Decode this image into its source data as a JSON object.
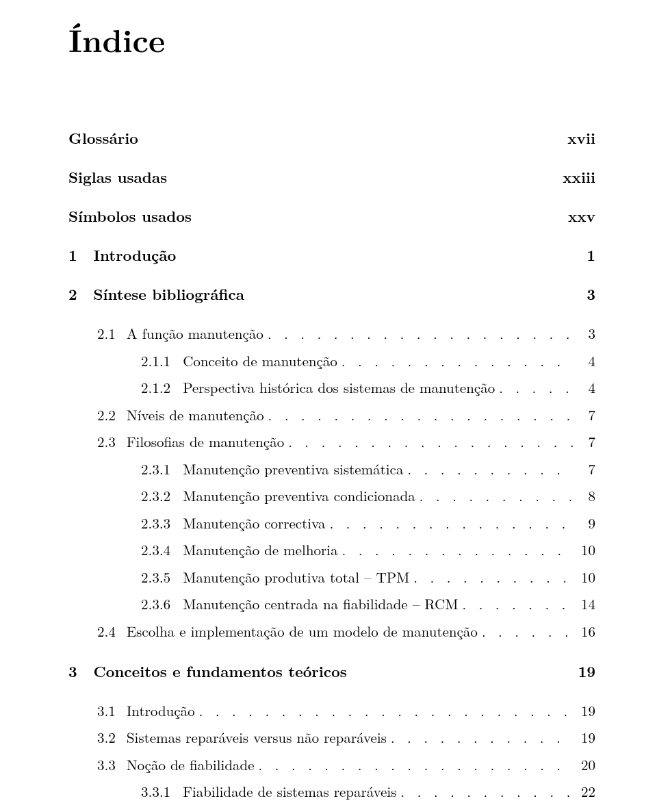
{
  "title": "Índice",
  "leader_dots": ". . . . . . . . . . . . . . . . . . . . . . . . . . . . . . . . . . . . . . . . . . . . . . . . . . . . . . . . . . . . . . . . . . . . . .",
  "front_matter": [
    {
      "label": "Glossário",
      "page": "xvii"
    },
    {
      "label": "Siglas usadas",
      "page": "xxiii"
    },
    {
      "label": "Símbolos usados",
      "page": "xxv"
    }
  ],
  "chapters": [
    {
      "num": "1",
      "label": "Introdução",
      "page": "1",
      "sections": []
    },
    {
      "num": "2",
      "label": "Síntese bibliográfica",
      "page": "3",
      "sections": [
        {
          "num": "2.1",
          "label": "A função manutenção",
          "page": "3",
          "subsections": [
            {
              "num": "2.1.1",
              "label": "Conceito de manutenção",
              "page": "4"
            },
            {
              "num": "2.1.2",
              "label": "Perspectiva histórica dos sistemas de manutenção",
              "page": "4"
            }
          ]
        },
        {
          "num": "2.2",
          "label": "Níveis de manutenção",
          "page": "7",
          "subsections": []
        },
        {
          "num": "2.3",
          "label": "Filosofias de manutenção",
          "page": "7",
          "subsections": [
            {
              "num": "2.3.1",
              "label": "Manutenção preventiva sistemática",
              "page": "7"
            },
            {
              "num": "2.3.2",
              "label": "Manutenção preventiva condicionada",
              "page": "8"
            },
            {
              "num": "2.3.3",
              "label": "Manutenção correctiva",
              "page": "9"
            },
            {
              "num": "2.3.4",
              "label": "Manutenção de melhoria",
              "page": "10"
            },
            {
              "num": "2.3.5",
              "label": "Manutenção produtiva total – TPM",
              "page": "10"
            },
            {
              "num": "2.3.6",
              "label": "Manutenção centrada na fiabilidade – RCM",
              "page": "14"
            }
          ]
        },
        {
          "num": "2.4",
          "label": "Escolha e implementação de um modelo de manutenção",
          "page": "16",
          "subsections": []
        }
      ]
    },
    {
      "num": "3",
      "label": "Conceitos e fundamentos teóricos",
      "page": "19",
      "sections": [
        {
          "num": "3.1",
          "label": "Introdução",
          "page": "19",
          "subsections": []
        },
        {
          "num": "3.2",
          "label": "Sistemas reparáveis versus não reparáveis",
          "page": "19",
          "subsections": []
        },
        {
          "num": "3.3",
          "label": "Noção de fiabilidade",
          "page": "20",
          "subsections": [
            {
              "num": "3.3.1",
              "label": "Fiabilidade de sistemas reparáveis",
              "page": "22"
            }
          ]
        }
      ]
    }
  ]
}
